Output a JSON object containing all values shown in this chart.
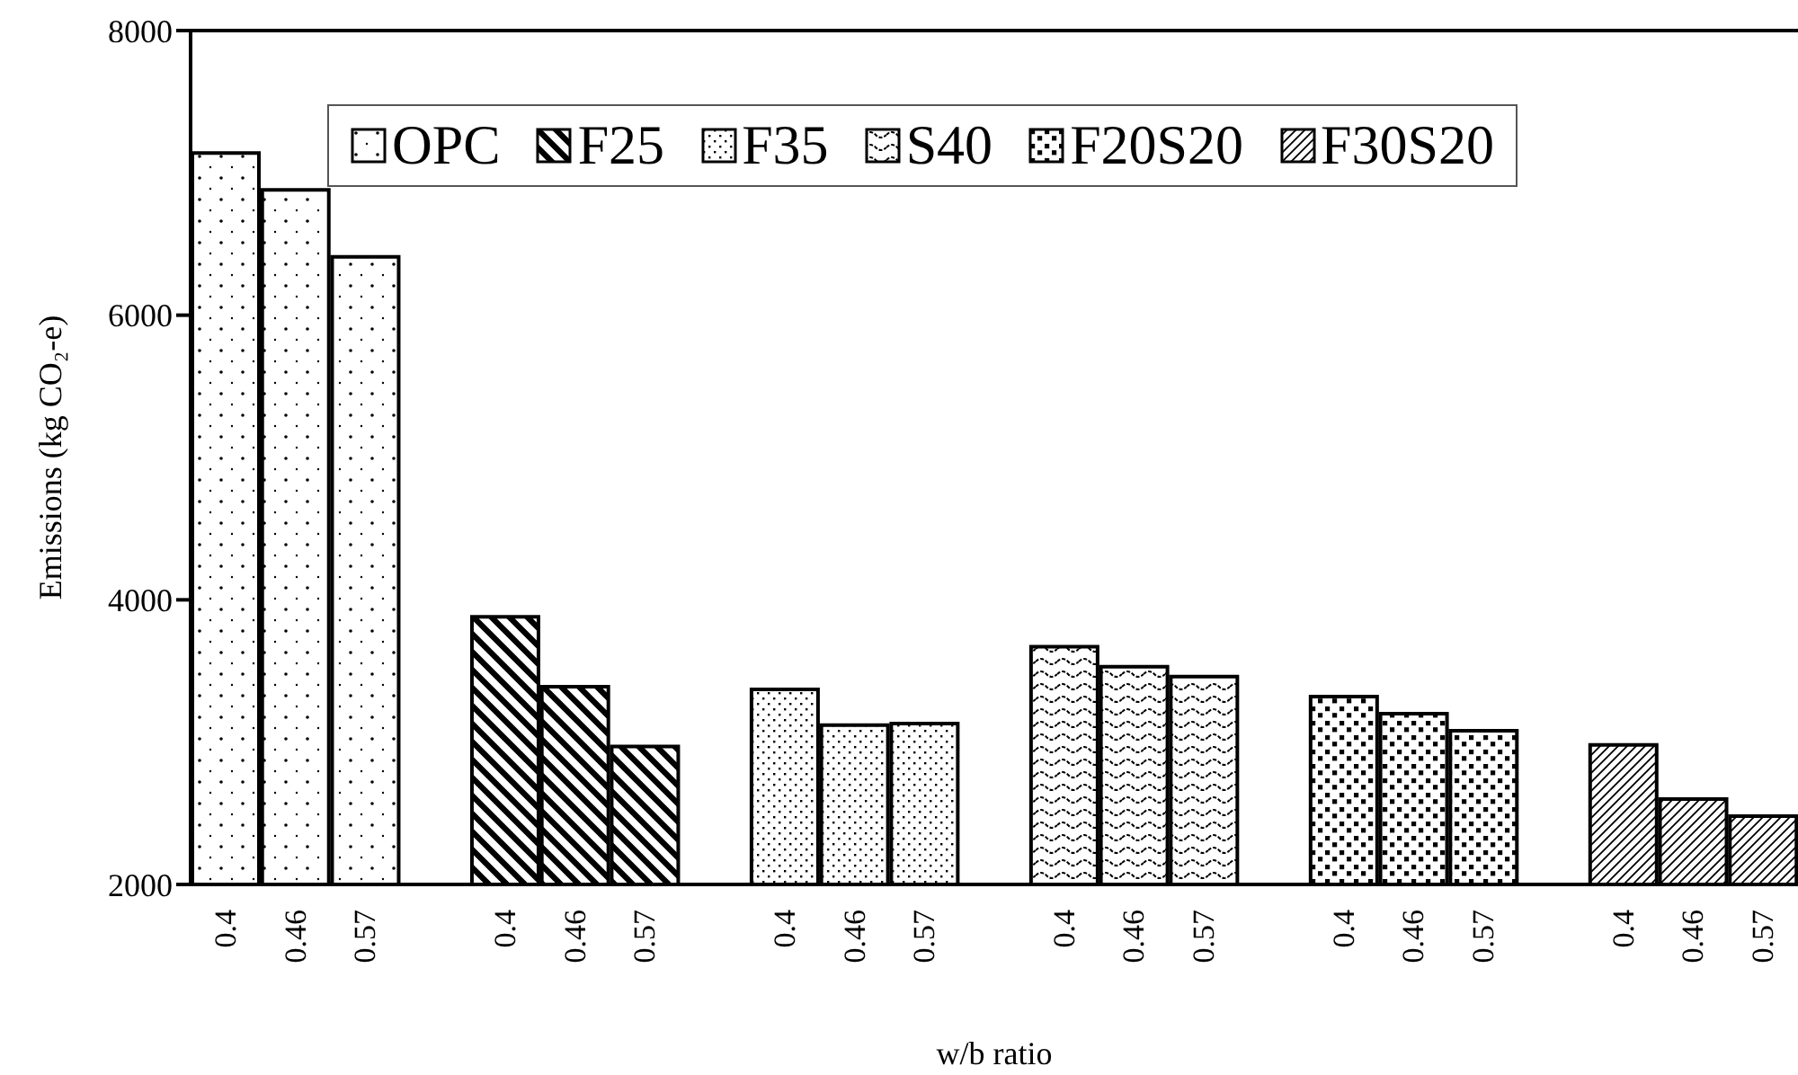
{
  "chart_data": {
    "type": "bar",
    "xlabel": "w/b ratio",
    "ylabel": "Emissions (kg CO₂-e)",
    "categories": [
      "0.4",
      "0.46",
      "0.57",
      null,
      "0.4",
      "0.46",
      "0.57",
      null,
      "0.4",
      "0.46",
      "0.57",
      null,
      "0.4",
      "0.46",
      "0.57",
      null,
      "0.4",
      "0.46",
      "0.57",
      null,
      "0.4",
      "0.46",
      "0.57"
    ],
    "series": [
      {
        "name": "OPC",
        "color": "#000000",
        "values": [
          7140,
          6880,
          6410,
          null,
          null,
          null,
          null,
          null,
          null,
          null,
          null,
          null,
          null,
          null,
          null,
          null,
          null,
          null,
          null,
          null,
          null,
          null,
          null
        ]
      },
      {
        "name": "F25",
        "color": "#000000",
        "values": [
          null,
          null,
          null,
          null,
          3880,
          3390,
          2970,
          null,
          null,
          null,
          null,
          null,
          null,
          null,
          null,
          null,
          null,
          null,
          null,
          null,
          null,
          null,
          null
        ]
      },
      {
        "name": "F35",
        "color": "#000000",
        "values": [
          null,
          null,
          null,
          null,
          null,
          null,
          null,
          null,
          3370,
          3120,
          3130,
          null,
          null,
          null,
          null,
          null,
          null,
          null,
          null,
          null,
          null,
          null,
          null
        ]
      },
      {
        "name": "S40",
        "color": "#000000",
        "values": [
          null,
          null,
          null,
          null,
          null,
          null,
          null,
          null,
          null,
          null,
          null,
          null,
          3670,
          3530,
          3460,
          null,
          null,
          null,
          null,
          null,
          null,
          null,
          null
        ]
      },
      {
        "name": "F20S20",
        "color": "#000000",
        "values": [
          null,
          null,
          null,
          null,
          null,
          null,
          null,
          null,
          null,
          null,
          null,
          null,
          null,
          null,
          null,
          null,
          3320,
          3200,
          3080,
          null,
          null,
          null,
          null
        ]
      },
      {
        "name": "F30S20",
        "color": "#000000",
        "values": [
          null,
          null,
          null,
          null,
          null,
          null,
          null,
          null,
          null,
          null,
          null,
          null,
          null,
          null,
          null,
          null,
          null,
          null,
          null,
          null,
          2980,
          2600,
          2480
        ]
      }
    ],
    "ylim": [
      2000,
      8000
    ],
    "yticks": [
      2000,
      4000,
      6000,
      8000
    ],
    "legend": "top"
  }
}
